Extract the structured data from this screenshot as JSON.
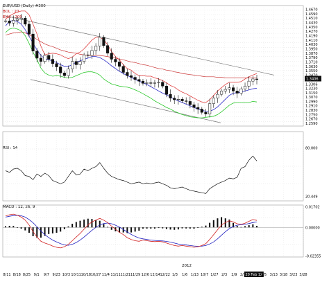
{
  "header": {
    "symbol_label": "EUR/USD (Daily) #300",
    "bol_label": "BOL : 20",
    "ema_label": "EMA : 200"
  },
  "colors": {
    "bol_label": "#c00000",
    "ema_label": "#c00000",
    "bollinger_mid": "#2b2bc8",
    "bollinger_upper": "#e04040",
    "bollinger_lower": "#2bc82b",
    "ema200": "#c83030",
    "channel": "#777777",
    "candle": "#111111",
    "rsi": "#111111",
    "macd_fast": "#d02020",
    "macd_signal": "#2020c0",
    "histogram": "#111111",
    "last_price_box": "#111111"
  },
  "chart_data": [
    {
      "type": "candlestick",
      "panel": "price",
      "y_tick_labels": [
        "1.4670",
        "1.4590",
        "1.4510",
        "1.4430",
        "1.4350",
        "1.4270",
        "1.4190",
        "1.4110",
        "1.4030",
        "1.3950",
        "1.3870",
        "1.3790",
        "1.3710",
        "1.3630",
        "1.3550",
        "1.3470",
        "1.3390",
        "1.3306",
        "1.3230",
        "1.3150",
        "1.3070",
        "1.2990",
        "1.2910",
        "1.2830",
        "1.2750",
        "1.2670",
        "1.2590"
      ],
      "ylim": [
        1.254,
        1.474
      ],
      "last_price": "1.3406",
      "price_path": [
        1.446,
        1.442,
        1.447,
        1.449,
        1.451,
        1.44,
        1.422,
        1.391,
        1.378,
        1.372,
        1.383,
        1.376,
        1.368,
        1.362,
        1.351,
        1.346,
        1.358,
        1.372,
        1.366,
        1.372,
        1.384,
        1.383,
        1.392,
        1.4,
        1.416,
        1.401,
        1.387,
        1.376,
        1.371,
        1.363,
        1.352,
        1.346,
        1.343,
        1.339,
        1.336,
        1.332,
        1.333,
        1.332,
        1.333,
        1.334,
        1.327,
        1.312,
        1.305,
        1.302,
        1.303,
        1.3,
        1.299,
        1.293,
        1.288,
        1.285,
        1.279,
        1.276,
        1.295,
        1.305,
        1.312,
        1.318,
        1.321,
        1.324,
        1.318,
        1.314,
        1.322,
        1.327,
        1.336,
        1.34,
        1.339
      ],
      "channel": {
        "upper": [
          1.455,
          1.347
        ],
        "lower": [
          1.339,
          1.26
        ]
      },
      "bollinger_mid_path": [
        1.437,
        1.445,
        1.447,
        1.445,
        1.44,
        1.43,
        1.418,
        1.405,
        1.393,
        1.383,
        1.377,
        1.375,
        1.373,
        1.37,
        1.366,
        1.363,
        1.363,
        1.366,
        1.371,
        1.373,
        1.376,
        1.378,
        1.381,
        1.381,
        1.379,
        1.375,
        1.37,
        1.364,
        1.359,
        1.354,
        1.35,
        1.346,
        1.343,
        1.339,
        1.336,
        1.333,
        1.33,
        1.326,
        1.322,
        1.318,
        1.314,
        1.311,
        1.307,
        1.303,
        1.3,
        1.297,
        1.294,
        1.291,
        1.288,
        1.285,
        1.283,
        1.281,
        1.281,
        1.284,
        1.289,
        1.296,
        1.303,
        1.31,
        1.314,
        1.315,
        1.316,
        1.318,
        1.32,
        1.322,
        1.323
      ],
      "bollinger_upper_path": [
        1.449,
        1.455,
        1.459,
        1.462,
        1.464,
        1.464,
        1.457,
        1.44,
        1.422,
        1.4,
        1.384,
        1.386,
        1.387,
        1.386,
        1.384,
        1.38,
        1.377,
        1.38,
        1.386,
        1.389,
        1.395,
        1.403,
        1.411,
        1.416,
        1.416,
        1.412,
        1.402,
        1.39,
        1.381,
        1.375,
        1.366,
        1.359,
        1.356,
        1.35,
        1.346,
        1.346,
        1.345,
        1.345,
        1.342,
        1.34,
        1.337,
        1.333,
        1.328,
        1.325,
        1.32,
        1.316,
        1.313,
        1.309,
        1.305,
        1.301,
        1.298,
        1.297,
        1.302,
        1.31,
        1.318,
        1.324,
        1.33,
        1.334,
        1.334,
        1.334,
        1.335,
        1.34,
        1.344,
        1.347,
        1.35
      ],
      "bollinger_lower_path": [
        1.425,
        1.431,
        1.433,
        1.431,
        1.428,
        1.419,
        1.405,
        1.389,
        1.375,
        1.36,
        1.351,
        1.347,
        1.345,
        1.346,
        1.345,
        1.343,
        1.342,
        1.343,
        1.346,
        1.349,
        1.352,
        1.353,
        1.353,
        1.351,
        1.347,
        1.34,
        1.335,
        1.331,
        1.329,
        1.327,
        1.326,
        1.325,
        1.323,
        1.32,
        1.317,
        1.313,
        1.309,
        1.305,
        1.3,
        1.296,
        1.292,
        1.288,
        1.285,
        1.281,
        1.278,
        1.275,
        1.273,
        1.271,
        1.27,
        1.269,
        1.269,
        1.27,
        1.271,
        1.272,
        1.275,
        1.28,
        1.286,
        1.292,
        1.296,
        1.297,
        1.297,
        1.297,
        1.297,
        1.299,
        1.298
      ],
      "ema200_path": [
        1.42,
        1.422,
        1.424,
        1.425,
        1.426,
        1.424,
        1.421,
        1.417,
        1.412,
        1.408,
        1.404,
        1.401,
        1.399,
        1.396,
        1.393,
        1.391,
        1.389,
        1.388,
        1.387,
        1.385,
        1.384,
        1.383,
        1.383,
        1.383,
        1.383,
        1.382,
        1.381,
        1.379,
        1.378,
        1.376,
        1.375,
        1.373,
        1.371,
        1.37,
        1.368,
        1.366,
        1.365,
        1.363,
        1.361,
        1.359,
        1.358,
        1.356,
        1.355,
        1.353,
        1.352,
        1.35,
        1.349,
        1.348,
        1.347,
        1.346,
        1.345,
        1.344,
        1.344,
        1.344,
        1.343,
        1.343,
        1.342,
        1.342,
        1.342,
        1.342,
        1.342,
        1.342,
        1.342,
        1.342,
        1.342
      ]
    },
    {
      "type": "line",
      "panel": "rsi",
      "label": "RSI : 14",
      "y_tick_labels": [
        "80.000",
        "20.449"
      ],
      "ylim": [
        15,
        100
      ],
      "values": [
        52,
        50,
        54,
        55,
        52,
        46,
        45,
        41,
        48,
        45,
        49,
        46,
        40,
        38,
        36,
        38,
        45,
        52,
        47,
        48,
        54,
        52,
        55,
        57,
        62,
        55,
        49,
        45,
        43,
        41,
        40,
        38,
        36,
        37,
        38,
        36,
        37,
        36,
        37,
        38,
        36,
        34,
        31,
        30,
        31,
        32,
        30,
        28,
        27,
        26,
        25,
        24,
        30,
        33,
        36,
        38,
        40,
        43,
        42,
        44,
        55,
        57,
        65,
        70,
        64
      ]
    },
    {
      "type": "line",
      "panel": "macd",
      "label": "MACD : 12, 26, 9",
      "y_tick_labels": [
        "0.01702",
        "0.00000",
        "-0.02355"
      ],
      "ylim": [
        -0.0245,
        0.0185
      ],
      "macd_values": [
        0.0095,
        0.0105,
        0.011,
        0.01,
        0.0085,
        0.006,
        0.002,
        -0.0035,
        -0.008,
        -0.0115,
        -0.013,
        -0.014,
        -0.0155,
        -0.0165,
        -0.017,
        -0.016,
        -0.014,
        -0.011,
        -0.008,
        -0.005,
        -0.0015,
        0.002,
        0.0045,
        0.006,
        0.0075,
        0.006,
        0.004,
        0.001,
        -0.0015,
        -0.004,
        -0.006,
        -0.0085,
        -0.01,
        -0.011,
        -0.0115,
        -0.0105,
        -0.011,
        -0.0115,
        -0.0118,
        -0.0115,
        -0.012,
        -0.013,
        -0.014,
        -0.015,
        -0.0155,
        -0.015,
        -0.0155,
        -0.016,
        -0.0165,
        -0.016,
        -0.015,
        -0.0135,
        -0.01,
        -0.006,
        -0.002,
        0.002,
        0.004,
        0.0055,
        0.0045,
        0.003,
        0.0025,
        0.0035,
        0.005,
        0.0065,
        0.0058
      ],
      "signal_values": [
        0.0085,
        0.0092,
        0.0098,
        0.01,
        0.0096,
        0.0085,
        0.0065,
        0.0038,
        0.0005,
        -0.003,
        -0.006,
        -0.0085,
        -0.0105,
        -0.012,
        -0.0135,
        -0.0145,
        -0.0148,
        -0.014,
        -0.0125,
        -0.0105,
        -0.008,
        -0.0052,
        -0.0025,
        0.0,
        0.002,
        0.0032,
        0.0036,
        0.003,
        0.0018,
        0.0002,
        -0.0018,
        -0.0038,
        -0.0058,
        -0.0075,
        -0.0088,
        -0.0095,
        -0.01,
        -0.0105,
        -0.0108,
        -0.011,
        -0.0112,
        -0.0116,
        -0.0122,
        -0.013,
        -0.0138,
        -0.0142,
        -0.0146,
        -0.015,
        -0.0154,
        -0.0156,
        -0.0155,
        -0.015,
        -0.0138,
        -0.012,
        -0.0095,
        -0.0065,
        -0.0035,
        -0.001,
        0.0008,
        0.0018,
        0.0022,
        0.0025,
        0.0032,
        0.004,
        0.0045
      ]
    }
  ],
  "x_axis": {
    "tick_labels": [
      "8/11",
      "8/18",
      "8/25",
      "9/1",
      "9/7",
      "9/23",
      "10/3",
      "10/11",
      "10/18",
      "10/27",
      "11/4",
      "11/11",
      "11/21",
      "11/29",
      "12/6",
      "12/14",
      "12/22",
      "1/3",
      "1/6",
      "1/13",
      "10/7",
      "1/27",
      "2/3",
      "2/9",
      "2/16",
      "20 Feb 12",
      "3/5",
      "3/13",
      "3/18",
      "3/23",
      "3/28"
    ],
    "year_label": "2012",
    "highlighted_label": "20 Feb 12"
  }
}
